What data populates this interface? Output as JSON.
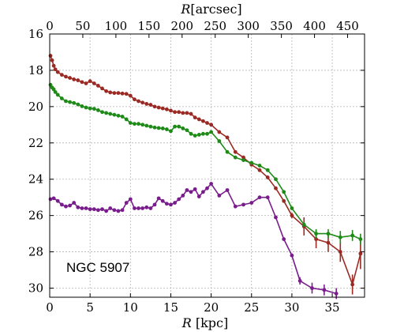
{
  "chart_data": {
    "type": "line",
    "title": "",
    "annotation": "NGC 5907",
    "xlabel": "R [kpc]",
    "xlabel_top": "R[arcsec]",
    "ylabel": "",
    "xlim": [
      0,
      39
    ],
    "ylim": [
      30.5,
      16
    ],
    "y_inverted": true,
    "grid": true,
    "x_ticks": [
      "0",
      "5",
      "10",
      "15",
      "20",
      "25",
      "30",
      "35"
    ],
    "x_tick_values": [
      0,
      5,
      10,
      15,
      20,
      25,
      30,
      35
    ],
    "y_ticks": [
      "16",
      "18",
      "20",
      "22",
      "24",
      "26",
      "28",
      "30"
    ],
    "y_tick_values": [
      16,
      18,
      20,
      22,
      24,
      26,
      28,
      30
    ],
    "top_ticks": [
      "0",
      "50",
      "100",
      "150",
      "200",
      "250",
      "300",
      "350",
      "400",
      "450"
    ],
    "top_tick_positions_kpc": [
      0,
      4.1,
      8.2,
      12.3,
      16.4,
      20.5,
      24.6,
      28.7,
      32.8,
      36.9
    ],
    "series": [
      {
        "color": "#9b2a24",
        "x": [
          0.1,
          0.3,
          0.5,
          0.7,
          1.0,
          1.5,
          2.0,
          2.5,
          3.0,
          3.5,
          4.0,
          4.5,
          5.0,
          5.5,
          6.0,
          6.5,
          7.0,
          7.5,
          8.0,
          8.5,
          9.0,
          9.5,
          10.0,
          10.5,
          11.0,
          11.5,
          12.0,
          12.5,
          13.0,
          13.5,
          14.0,
          14.5,
          15.0,
          15.5,
          16.0,
          16.5,
          17.0,
          17.5,
          18.0,
          18.5,
          19.0,
          19.5,
          20.0,
          21.0,
          22.0,
          23.0,
          24.0,
          25.0,
          26.0,
          27.0,
          28.0,
          29.0,
          30.0,
          31.5,
          33.0,
          34.5,
          36.0,
          37.5,
          38.5
        ],
        "y": [
          17.2,
          17.45,
          17.75,
          17.95,
          18.1,
          18.25,
          18.35,
          18.42,
          18.5,
          18.55,
          18.65,
          18.72,
          18.6,
          18.72,
          18.85,
          19.0,
          19.15,
          19.22,
          19.25,
          19.25,
          19.28,
          19.3,
          19.4,
          19.6,
          19.7,
          19.78,
          19.85,
          19.9,
          20.0,
          20.05,
          20.1,
          20.15,
          20.22,
          20.3,
          20.3,
          20.35,
          20.35,
          20.4,
          20.6,
          20.7,
          20.8,
          20.9,
          21.0,
          21.4,
          21.7,
          22.5,
          22.8,
          23.2,
          23.5,
          23.9,
          24.5,
          25.2,
          26.0,
          26.6,
          27.3,
          27.5,
          28.0,
          29.8,
          28.1
        ],
        "err": [
          0,
          0,
          0,
          0,
          0,
          0,
          0,
          0,
          0,
          0,
          0,
          0,
          0,
          0,
          0,
          0,
          0,
          0,
          0,
          0,
          0,
          0,
          0,
          0,
          0,
          0,
          0,
          0,
          0,
          0,
          0,
          0,
          0,
          0,
          0,
          0,
          0,
          0,
          0,
          0,
          0,
          0,
          0,
          0,
          0,
          0,
          0,
          0,
          0,
          0,
          0,
          0,
          0.15,
          0.5,
          0.5,
          0.5,
          0.55,
          0.55,
          0.85
        ]
      },
      {
        "color": "#1e8a17",
        "x": [
          0.1,
          0.3,
          0.5,
          0.7,
          1.0,
          1.5,
          2.0,
          2.5,
          3.0,
          3.5,
          4.0,
          4.5,
          5.0,
          5.5,
          6.0,
          6.5,
          7.0,
          7.5,
          8.0,
          8.5,
          9.0,
          9.5,
          10.0,
          10.5,
          11.0,
          11.5,
          12.0,
          12.5,
          13.0,
          13.5,
          14.0,
          14.5,
          15.0,
          15.5,
          16.0,
          16.5,
          17.0,
          17.5,
          18.0,
          18.5,
          19.0,
          19.5,
          20.0,
          21.0,
          22.0,
          23.0,
          24.0,
          25.0,
          26.0,
          27.0,
          28.0,
          29.0,
          30.0,
          31.5,
          33.0,
          34.5,
          36.0,
          37.5,
          38.5
        ],
        "y": [
          18.8,
          18.95,
          19.05,
          19.2,
          19.35,
          19.55,
          19.7,
          19.75,
          19.8,
          19.88,
          19.98,
          20.05,
          20.1,
          20.12,
          20.2,
          20.3,
          20.35,
          20.4,
          20.45,
          20.5,
          20.55,
          20.7,
          20.9,
          20.95,
          20.95,
          21.0,
          21.05,
          21.1,
          21.15,
          21.18,
          21.2,
          21.25,
          21.35,
          21.1,
          21.1,
          21.2,
          21.3,
          21.5,
          21.6,
          21.55,
          21.5,
          21.5,
          21.4,
          21.9,
          22.5,
          22.8,
          22.95,
          23.1,
          23.25,
          23.5,
          24.0,
          24.7,
          25.6,
          26.5,
          27.0,
          27.0,
          27.2,
          27.1,
          27.3
        ],
        "err": [
          0,
          0,
          0,
          0,
          0,
          0,
          0,
          0,
          0,
          0,
          0,
          0,
          0,
          0,
          0,
          0,
          0,
          0,
          0,
          0,
          0,
          0,
          0,
          0,
          0,
          0,
          0,
          0,
          0,
          0,
          0,
          0,
          0,
          0,
          0,
          0,
          0,
          0,
          0,
          0,
          0,
          0,
          0,
          0,
          0,
          0,
          0,
          0,
          0,
          0,
          0,
          0,
          0,
          0.12,
          0.25,
          0.25,
          0.35,
          0.3,
          0.3
        ]
      },
      {
        "color": "#7a1d8c",
        "x": [
          0.1,
          0.5,
          1.0,
          1.5,
          2.0,
          2.5,
          3.0,
          3.5,
          4.0,
          4.5,
          5.0,
          5.5,
          6.0,
          6.5,
          7.0,
          7.5,
          8.0,
          8.5,
          9.0,
          9.5,
          10.0,
          10.5,
          11.0,
          11.5,
          12.0,
          12.5,
          13.0,
          13.5,
          14.0,
          14.5,
          15.0,
          15.5,
          16.0,
          16.5,
          17.0,
          17.5,
          18.0,
          18.5,
          19.0,
          19.5,
          20.0,
          21.0,
          22.0,
          23.0,
          24.0,
          25.0,
          26.0,
          27.0,
          28.0,
          29.0,
          30.0,
          31.0,
          32.5,
          34.0,
          35.5
        ],
        "y": [
          25.1,
          25.05,
          25.2,
          25.4,
          25.5,
          25.45,
          25.3,
          25.55,
          25.6,
          25.6,
          25.65,
          25.65,
          25.7,
          25.65,
          25.75,
          25.6,
          25.7,
          25.75,
          25.7,
          25.3,
          25.1,
          25.6,
          25.6,
          25.6,
          25.55,
          25.6,
          25.4,
          25.05,
          25.2,
          25.35,
          25.4,
          25.3,
          25.1,
          24.9,
          24.6,
          24.7,
          24.55,
          24.95,
          24.7,
          24.5,
          24.25,
          24.9,
          24.6,
          25.5,
          25.4,
          25.3,
          25.0,
          25.0,
          26.1,
          27.3,
          28.2,
          29.6,
          30.0,
          30.1,
          30.3
        ],
        "err": [
          0,
          0,
          0,
          0,
          0,
          0,
          0,
          0,
          0,
          0,
          0,
          0,
          0,
          0,
          0,
          0,
          0,
          0,
          0,
          0,
          0,
          0,
          0,
          0,
          0,
          0,
          0,
          0,
          0,
          0,
          0,
          0,
          0,
          0,
          0,
          0,
          0,
          0,
          0,
          0,
          0,
          0,
          0,
          0,
          0,
          0,
          0,
          0,
          0,
          0,
          0,
          0.2,
          0.3,
          0.3,
          0.3
        ]
      }
    ]
  }
}
